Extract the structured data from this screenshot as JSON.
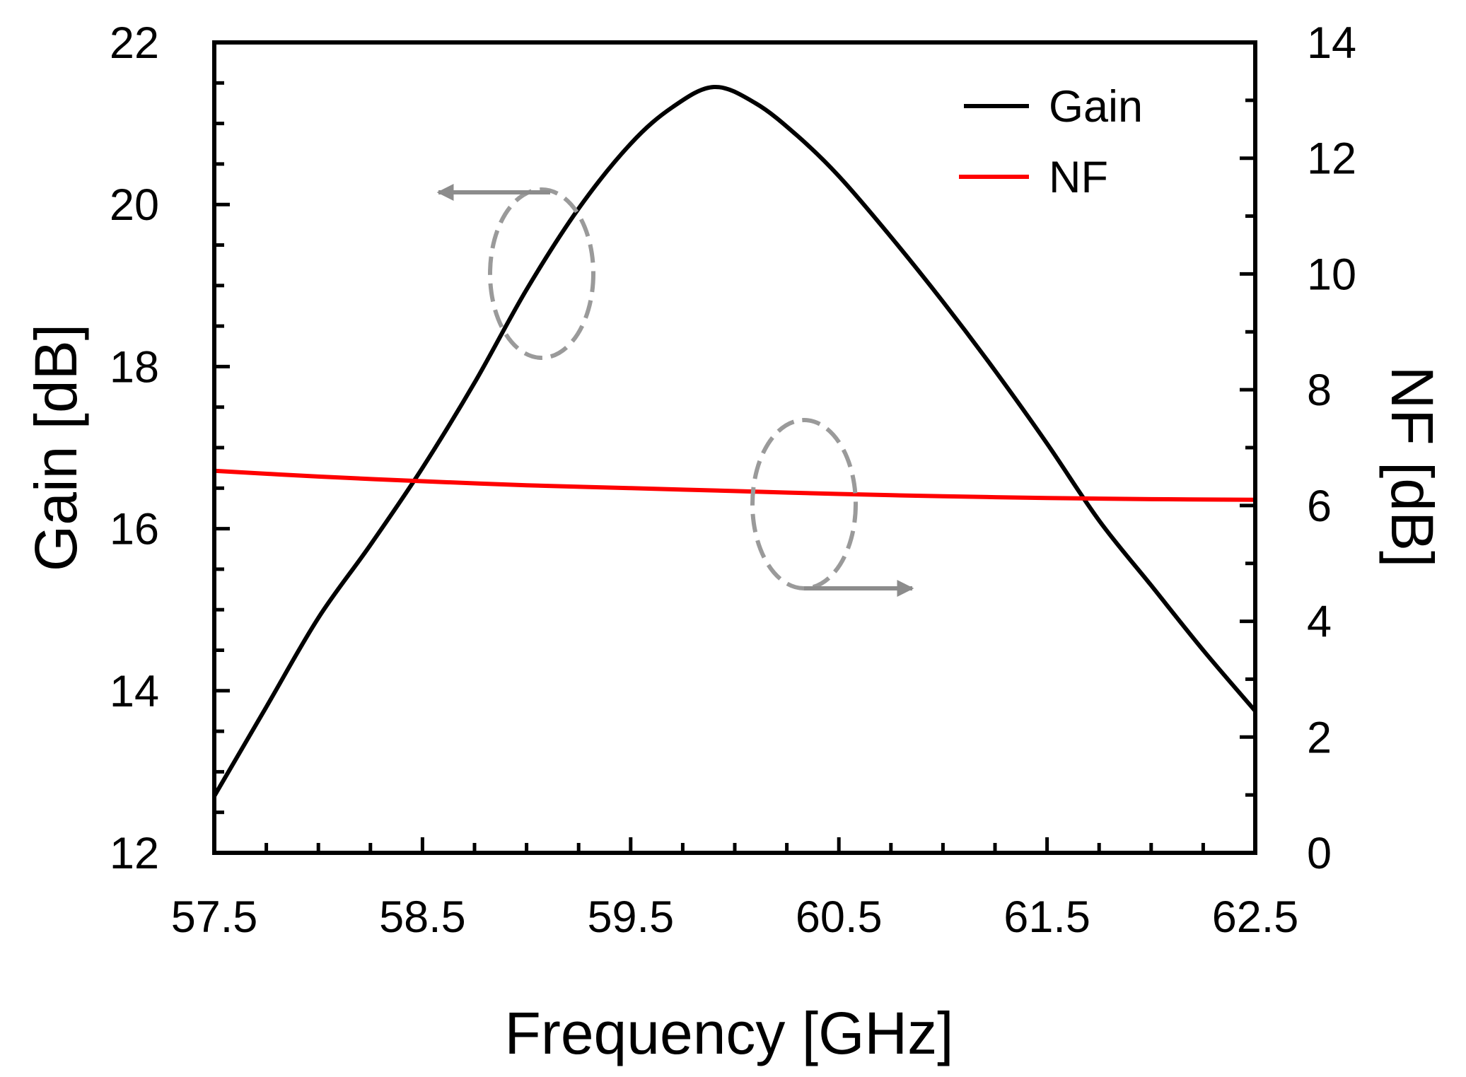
{
  "chart_data": {
    "type": "line",
    "xlabel": "Frequency [GHz]",
    "ylabel_left": "Gain [dB]",
    "ylabel_right": "NF [dB]",
    "xlim": [
      57.5,
      62.5
    ],
    "ylim_left": [
      12,
      22
    ],
    "ylim_right": [
      0,
      14
    ],
    "x_ticks": [
      "57.5",
      "58.5",
      "59.5",
      "60.5",
      "61.5",
      "62.5"
    ],
    "y_left_ticks": [
      "12",
      "14",
      "16",
      "18",
      "20",
      "22"
    ],
    "y_right_ticks": [
      "0",
      "2",
      "4",
      "6",
      "8",
      "10",
      "12",
      "14"
    ],
    "grid": false,
    "legend_position": "top-right",
    "series": [
      {
        "name": "Gain",
        "axis": "left",
        "color": "#000000",
        "x": [
          57.5,
          57.75,
          58.0,
          58.25,
          58.5,
          58.75,
          59.0,
          59.25,
          59.5,
          59.7,
          59.9,
          60.1,
          60.3,
          60.5,
          60.75,
          61.0,
          61.25,
          61.5,
          61.75,
          62.0,
          62.25,
          62.5
        ],
        "values": [
          12.7,
          13.8,
          14.9,
          15.8,
          16.75,
          17.8,
          18.95,
          19.95,
          20.75,
          21.2,
          21.45,
          21.25,
          20.85,
          20.35,
          19.6,
          18.8,
          17.95,
          17.05,
          16.1,
          15.3,
          14.5,
          13.75
        ]
      },
      {
        "name": "NF",
        "axis": "right",
        "color": "#ff0000",
        "x": [
          57.5,
          58.0,
          58.5,
          59.0,
          59.5,
          60.0,
          60.5,
          61.0,
          61.5,
          62.0,
          62.5
        ],
        "values": [
          6.6,
          6.5,
          6.42,
          6.35,
          6.3,
          6.25,
          6.2,
          6.16,
          6.13,
          6.11,
          6.1
        ]
      }
    ],
    "annotations": [
      {
        "type": "ellipse-arrow",
        "points_to": "left-axis",
        "series": "Gain"
      },
      {
        "type": "ellipse-arrow",
        "points_to": "right-axis",
        "series": "NF"
      }
    ]
  }
}
